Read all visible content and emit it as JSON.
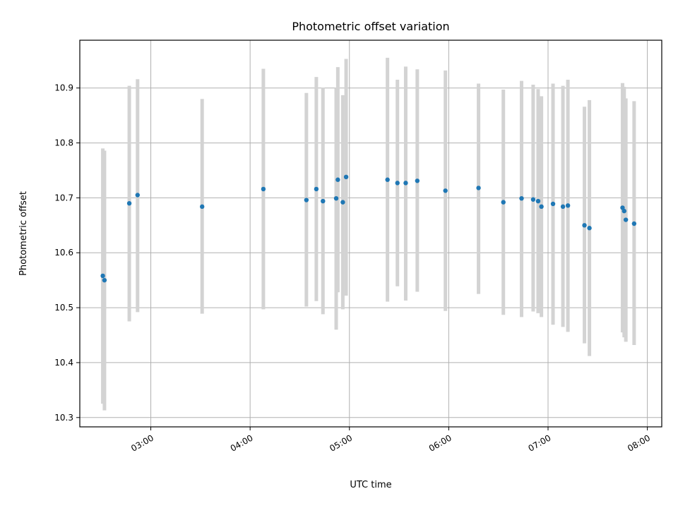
{
  "chart_data": {
    "type": "scatter",
    "title": "Photometric offset variation",
    "xlabel": "UTC time",
    "ylabel": "Photometric offset",
    "x_ticks": [
      "03:00",
      "04:00",
      "05:00",
      "06:00",
      "07:00",
      "08:00"
    ],
    "x_tick_hours": [
      3,
      4,
      5,
      6,
      7,
      8
    ],
    "y_ticks": [
      10.3,
      10.4,
      10.5,
      10.6,
      10.7,
      10.8,
      10.9
    ],
    "xlim": [
      "02:17",
      "08:08"
    ],
    "xlim_hours": [
      2.285,
      8.145
    ],
    "ylim": [
      10.283,
      10.987
    ],
    "grid": true,
    "colors": {
      "marker": "#1f77b4",
      "errorbar": "#d3d3d3",
      "grid": "#b0b0b0"
    },
    "points": [
      {
        "t": "02:31",
        "y": 10.558,
        "low": 10.325,
        "high": 10.79
      },
      {
        "t": "02:32",
        "y": 10.55,
        "low": 10.313,
        "high": 10.786
      },
      {
        "t": "02:47",
        "y": 10.69,
        "low": 10.475,
        "high": 10.904
      },
      {
        "t": "02:52",
        "y": 10.705,
        "low": 10.492,
        "high": 10.916
      },
      {
        "t": "03:31",
        "y": 10.684,
        "low": 10.489,
        "high": 10.88
      },
      {
        "t": "04:08",
        "y": 10.716,
        "low": 10.497,
        "high": 10.935
      },
      {
        "t": "04:34",
        "y": 10.696,
        "low": 10.502,
        "high": 10.891
      },
      {
        "t": "04:40",
        "y": 10.716,
        "low": 10.512,
        "high": 10.92
      },
      {
        "t": "04:44",
        "y": 10.694,
        "low": 10.488,
        "high": 10.901
      },
      {
        "t": "04:52",
        "y": 10.699,
        "low": 10.46,
        "high": 10.9
      },
      {
        "t": "04:53",
        "y": 10.733,
        "low": 10.528,
        "high": 10.938
      },
      {
        "t": "04:56",
        "y": 10.692,
        "low": 10.497,
        "high": 10.887
      },
      {
        "t": "04:58",
        "y": 10.738,
        "low": 10.522,
        "high": 10.953
      },
      {
        "t": "05:23",
        "y": 10.733,
        "low": 10.511,
        "high": 10.955
      },
      {
        "t": "05:29",
        "y": 10.727,
        "low": 10.539,
        "high": 10.915
      },
      {
        "t": "05:34",
        "y": 10.727,
        "low": 10.513,
        "high": 10.939
      },
      {
        "t": "05:41",
        "y": 10.731,
        "low": 10.529,
        "high": 10.934
      },
      {
        "t": "05:58",
        "y": 10.713,
        "low": 10.494,
        "high": 10.932
      },
      {
        "t": "06:18",
        "y": 10.718,
        "low": 10.525,
        "high": 10.908
      },
      {
        "t": "06:33",
        "y": 10.692,
        "low": 10.487,
        "high": 10.897
      },
      {
        "t": "06:44",
        "y": 10.699,
        "low": 10.483,
        "high": 10.913
      },
      {
        "t": "06:51",
        "y": 10.697,
        "low": 10.493,
        "high": 10.906
      },
      {
        "t": "06:54",
        "y": 10.694,
        "low": 10.49,
        "high": 10.898
      },
      {
        "t": "06:56",
        "y": 10.684,
        "low": 10.483,
        "high": 10.885
      },
      {
        "t": "07:03",
        "y": 10.689,
        "low": 10.469,
        "high": 10.908
      },
      {
        "t": "07:09",
        "y": 10.684,
        "low": 10.465,
        "high": 10.904
      },
      {
        "t": "07:12",
        "y": 10.686,
        "low": 10.456,
        "high": 10.915
      },
      {
        "t": "07:22",
        "y": 10.65,
        "low": 10.435,
        "high": 10.866
      },
      {
        "t": "07:25",
        "y": 10.645,
        "low": 10.412,
        "high": 10.878
      },
      {
        "t": "07:45",
        "y": 10.682,
        "low": 10.455,
        "high": 10.909
      },
      {
        "t": "07:46",
        "y": 10.676,
        "low": 10.446,
        "high": 10.902
      },
      {
        "t": "07:47",
        "y": 10.66,
        "low": 10.438,
        "high": 10.881
      },
      {
        "t": "07:52",
        "y": 10.653,
        "low": 10.432,
        "high": 10.876
      }
    ]
  }
}
